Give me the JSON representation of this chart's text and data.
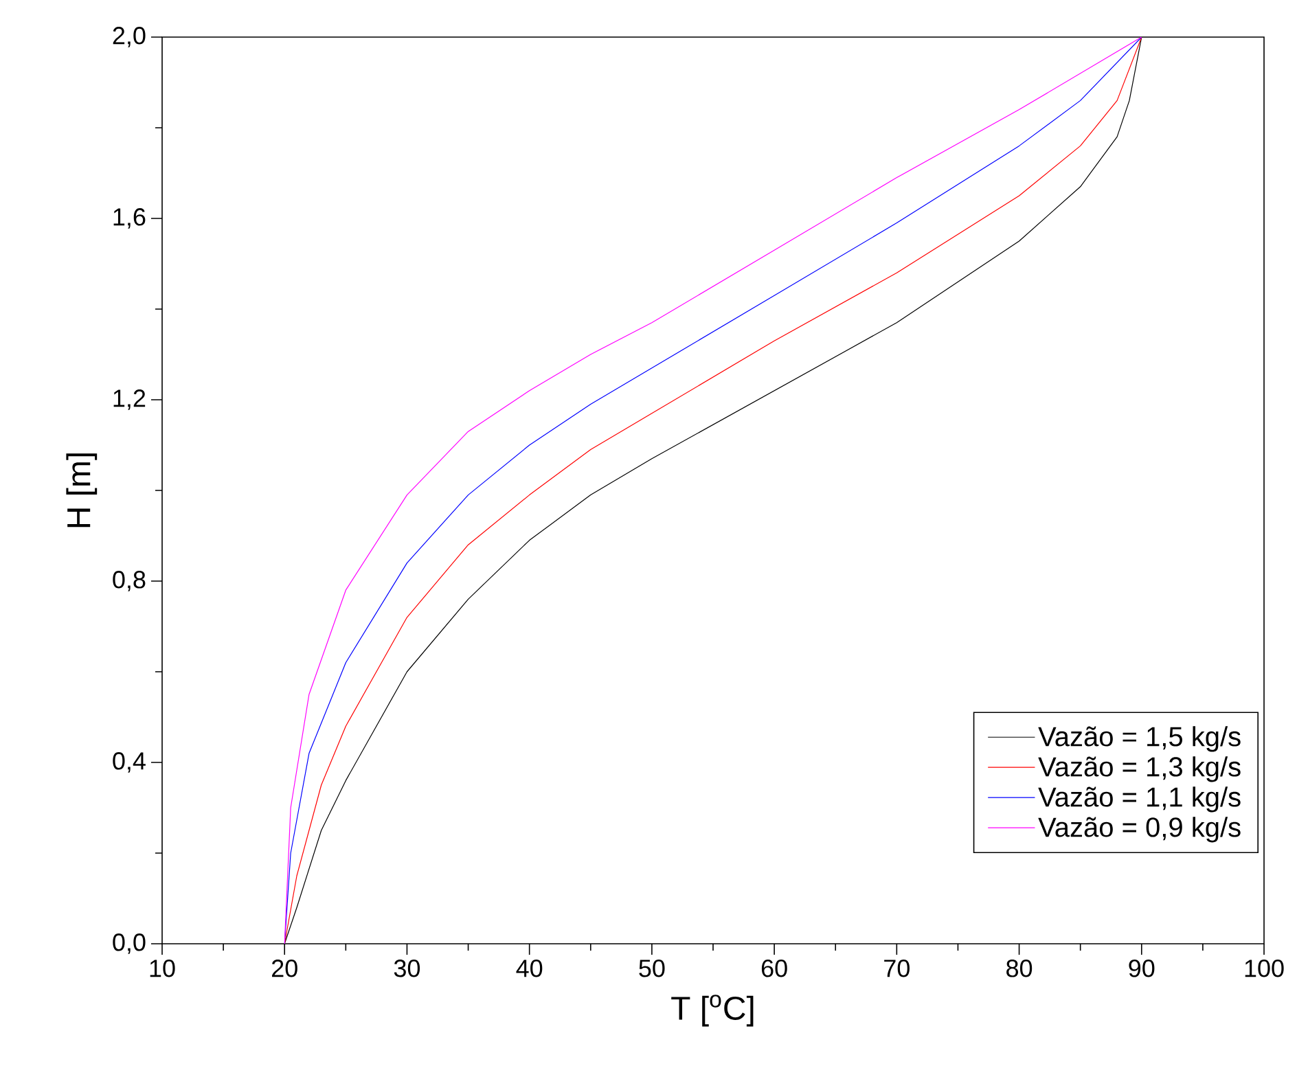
{
  "chart_data": {
    "type": "line",
    "xlabel": "T [$^{o}$C]",
    "ylabel": "H [m]",
    "xlim": [
      10,
      100
    ],
    "ylim": [
      0,
      2.0
    ],
    "xticks": [
      10,
      20,
      30,
      40,
      50,
      60,
      70,
      80,
      90,
      100
    ],
    "yticks": [
      {
        "value": 0,
        "label": "0,0"
      },
      {
        "value": 0.4,
        "label": "0,4"
      },
      {
        "value": 0.8,
        "label": "0,8"
      },
      {
        "value": 1.2,
        "label": "1,2"
      },
      {
        "value": 1.6,
        "label": "1,6"
      },
      {
        "value": 2.0,
        "label": "2,0"
      }
    ],
    "grid": false,
    "legend": "bottom right",
    "marker": "none",
    "line_style": "solid",
    "series": [
      {
        "name": "Vazão = 1,5 kg/s",
        "color": "#000000",
        "x": [
          20,
          21,
          23,
          25,
          30,
          35,
          40,
          45,
          50,
          60,
          70,
          80,
          85,
          88,
          89,
          90
        ],
        "values": [
          0,
          0.08,
          0.25,
          0.36,
          0.6,
          0.76,
          0.89,
          0.99,
          1.07,
          1.22,
          1.37,
          1.55,
          1.67,
          1.78,
          1.86,
          2.0
        ]
      },
      {
        "name": "Vazão = 1,3 kg/s",
        "color": "#ff0000",
        "x": [
          20,
          21,
          23,
          25,
          30,
          35,
          40,
          45,
          50,
          60,
          70,
          80,
          85,
          88,
          90
        ],
        "values": [
          0,
          0.15,
          0.35,
          0.48,
          0.72,
          0.88,
          0.99,
          1.09,
          1.17,
          1.33,
          1.48,
          1.65,
          1.76,
          1.86,
          2.0
        ]
      },
      {
        "name": "Vazão = 1,1 kg/s",
        "color": "#0000ff",
        "x": [
          20,
          20.5,
          22,
          25,
          30,
          35,
          40,
          45,
          50,
          60,
          70,
          80,
          85,
          90
        ],
        "values": [
          0,
          0.2,
          0.42,
          0.62,
          0.84,
          0.99,
          1.1,
          1.19,
          1.27,
          1.43,
          1.59,
          1.76,
          1.86,
          2.0
        ]
      },
      {
        "name": "Vazão = 0,9 kg/s",
        "color": "#ff00ff",
        "x": [
          20,
          20.5,
          22,
          25,
          30,
          35,
          40,
          45,
          50,
          60,
          70,
          80,
          90
        ],
        "values": [
          0,
          0.3,
          0.55,
          0.78,
          0.99,
          1.13,
          1.22,
          1.3,
          1.37,
          1.53,
          1.69,
          1.84,
          2.0
        ]
      }
    ]
  }
}
